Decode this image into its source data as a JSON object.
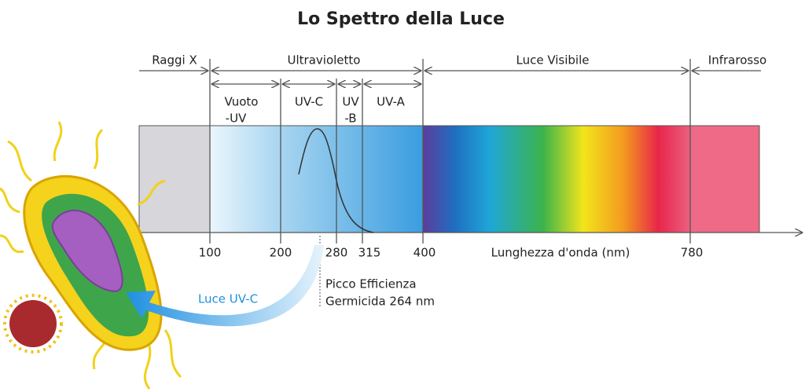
{
  "title": "Lo Spettro della Luce",
  "regions": [
    {
      "label": "Raggi X"
    },
    {
      "label": "Ultravioletto"
    },
    {
      "label": "Luce Visibile"
    },
    {
      "label": "Infrarosso"
    }
  ],
  "subregions": [
    {
      "lines": [
        "Vuoto",
        "-UV"
      ]
    },
    {
      "lines": [
        "UV-C"
      ]
    },
    {
      "lines": [
        "UV",
        "-B"
      ]
    },
    {
      "lines": [
        "UV-A"
      ]
    }
  ],
  "axis": {
    "ticks": [
      100,
      200,
      280,
      315,
      400,
      780
    ],
    "label": "Lunghezza d'onda (nm)"
  },
  "annotation": {
    "lines": [
      "Picco Efficienza",
      "Germicida 264 nm"
    ]
  },
  "arrow_label": "Luce UV-C"
}
